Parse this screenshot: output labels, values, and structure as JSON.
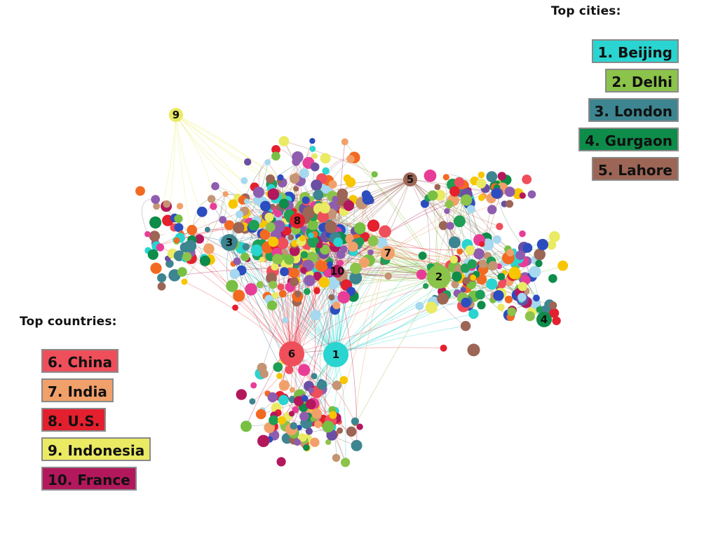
{
  "top_cities": {
    "heading": "Top cities:",
    "items": [
      {
        "label": "1. Beijing",
        "color": "#2ad4d0"
      },
      {
        "label": "2. Delhi",
        "color": "#8cc34a"
      },
      {
        "label": "3. London",
        "color": "#3d8590"
      },
      {
        "label": "4. Gurgaon",
        "color": "#0e8c4a"
      },
      {
        "label": "5. Lahore",
        "color": "#9c6555"
      }
    ]
  },
  "top_countries": {
    "heading": "Top countries:",
    "items": [
      {
        "label": "6. China",
        "color": "#ef4f5a"
      },
      {
        "label": "7. India",
        "color": "#f2a06a"
      },
      {
        "label": "8. U.S.",
        "color": "#e41f2e"
      },
      {
        "label": "9. Indonesia",
        "color": "#eaea63"
      },
      {
        "label": "10. France",
        "color": "#b3185c"
      }
    ]
  },
  "hubs": [
    {
      "label": "1",
      "group": "city",
      "color": "#2ad4d0"
    },
    {
      "label": "2",
      "group": "city",
      "color": "#8cc34a"
    },
    {
      "label": "3",
      "group": "city",
      "color": "#3d8590"
    },
    {
      "label": "4",
      "group": "city",
      "color": "#0e8c4a"
    },
    {
      "label": "5",
      "group": "city",
      "color": "#9c6555"
    },
    {
      "label": "6",
      "group": "country",
      "color": "#ef4f5a"
    },
    {
      "label": "7",
      "group": "country",
      "color": "#f2a06a"
    },
    {
      "label": "8",
      "group": "country",
      "color": "#e41f2e"
    },
    {
      "label": "9",
      "group": "country",
      "color": "#eaea63"
    },
    {
      "label": "10",
      "group": "country",
      "color": "#b3185c"
    }
  ],
  "node_palette": [
    "#2ad4d0",
    "#8cc34a",
    "#3d8590",
    "#0e8c4a",
    "#9c6555",
    "#ef4f5a",
    "#f2a06a",
    "#e41f2e",
    "#eaea63",
    "#b3185c",
    "#f7c600",
    "#2c4dbf",
    "#a6d8ef",
    "#8e5db0",
    "#c49474",
    "#e83d97",
    "#1f9e55",
    "#f26a21",
    "#6a4fa3",
    "#77c043"
  ],
  "edge_palette": [
    "#8a9a6a",
    "#b06a6a",
    "#6a8a9a",
    "#9a7aa0",
    "#c07a6a",
    "#7aa07a"
  ]
}
